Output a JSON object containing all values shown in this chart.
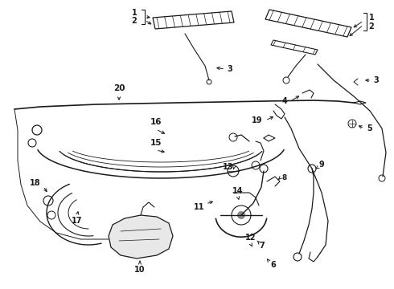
{
  "bg_color": "#ffffff",
  "line_color": "#1a1a1a",
  "lw": 0.9,
  "figsize": [
    4.9,
    3.6
  ],
  "dpi": 100
}
